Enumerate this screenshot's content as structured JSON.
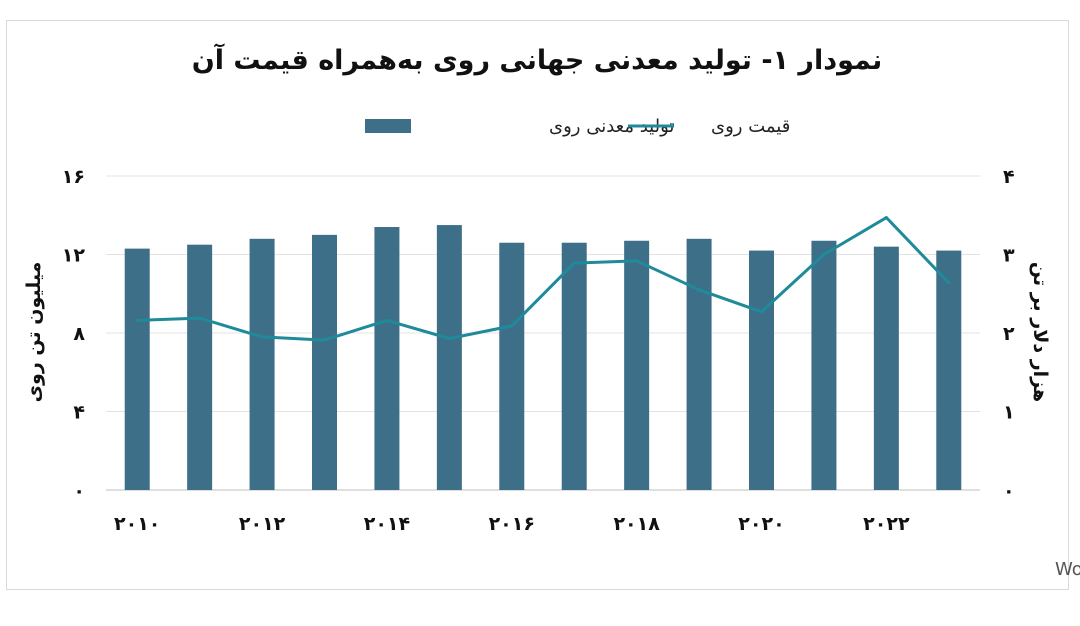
{
  "chart_data": {
    "type": "bar",
    "title": "نمودار ۱- تولید معدنی جهانی روی به‌همراه قیمت آن",
    "legend": {
      "placement": "top-center",
      "bar_label": "تولید معدنی روی",
      "line_label": "قیمت روی"
    },
    "ylabel_left": "میلیون تن روی",
    "ylabel_right": "هزار دلار بر تن",
    "ylim_left": [
      0,
      16
    ],
    "ylim_right": [
      0,
      4
    ],
    "y_ticks_left": [
      "۰",
      "۴",
      "۸",
      "۱۲",
      "۱۶"
    ],
    "y_ticks_right": [
      "۰",
      "۱",
      "۲",
      "۳",
      "۴"
    ],
    "x": [
      2010,
      2011,
      2012,
      2013,
      2014,
      2015,
      2016,
      2017,
      2018,
      2019,
      2020,
      2021,
      2022,
      2023
    ],
    "x_tick_labels": [
      "۲۰۱۰",
      "",
      "۲۰۱۲",
      "",
      "۲۰۱۴",
      "",
      "۲۰۱۶",
      "",
      "۲۰۱۸",
      "",
      "۲۰۲۰",
      "",
      "۲۰۲۲",
      ""
    ],
    "series": [
      {
        "name": "تولید معدنی روی",
        "type": "bar",
        "axis": "left",
        "color": "#3d6f88",
        "values": [
          12.3,
          12.5,
          12.8,
          13.0,
          13.4,
          13.5,
          12.6,
          12.6,
          12.7,
          12.8,
          12.2,
          12.7,
          12.4,
          12.2
        ]
      },
      {
        "name": "قیمت روی",
        "type": "line",
        "axis": "right",
        "color": "#1f8a9a",
        "values": [
          2.16,
          2.19,
          1.95,
          1.91,
          2.16,
          1.93,
          2.09,
          2.89,
          2.92,
          2.55,
          2.27,
          3.0,
          3.47,
          2.64
        ]
      }
    ],
    "grid": true,
    "source": "منبع: ILZSG و World Bank"
  }
}
